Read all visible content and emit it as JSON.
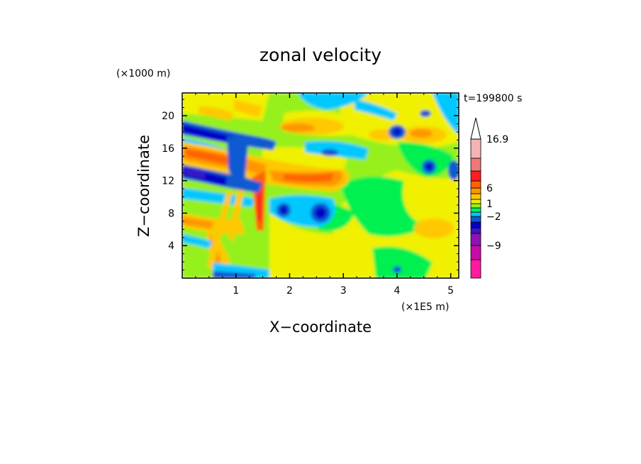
{
  "chart_data": {
    "type": "heatmap",
    "title": "zonal velocity",
    "xlabel": "X−coordinate",
    "ylabel": "Z−coordinate",
    "x_unit": "(×1E5 m)",
    "y_unit": "(×1000 m)",
    "time_label": "t=199800 s",
    "xlim": [
      0,
      5.15
    ],
    "ylim": [
      0,
      22.8
    ],
    "x_ticks": [
      1,
      2,
      3,
      4,
      5
    ],
    "y_ticks": [
      4,
      8,
      12,
      16,
      20
    ],
    "colorbar": {
      "labeled_values": [
        "16.9",
        "6",
        "1",
        "−2",
        "−9"
      ],
      "levels": [
        {
          "color": "#ff1aa0"
        },
        {
          "color": "#c80aa8"
        },
        {
          "color": "#8c14b4"
        },
        {
          "color": "#3c14c8"
        },
        {
          "color": "#0000c8"
        },
        {
          "color": "#0a5ad2"
        },
        {
          "color": "#00c8ff"
        },
        {
          "color": "#00f050"
        },
        {
          "color": "#96f01e"
        },
        {
          "color": "#f0f000"
        },
        {
          "color": "#ffc800"
        },
        {
          "color": "#ff9600"
        },
        {
          "color": "#ff6400"
        },
        {
          "color": "#ff1e1e"
        },
        {
          "color": "#f07878"
        },
        {
          "color": "#f5b4b4"
        }
      ]
    }
  }
}
